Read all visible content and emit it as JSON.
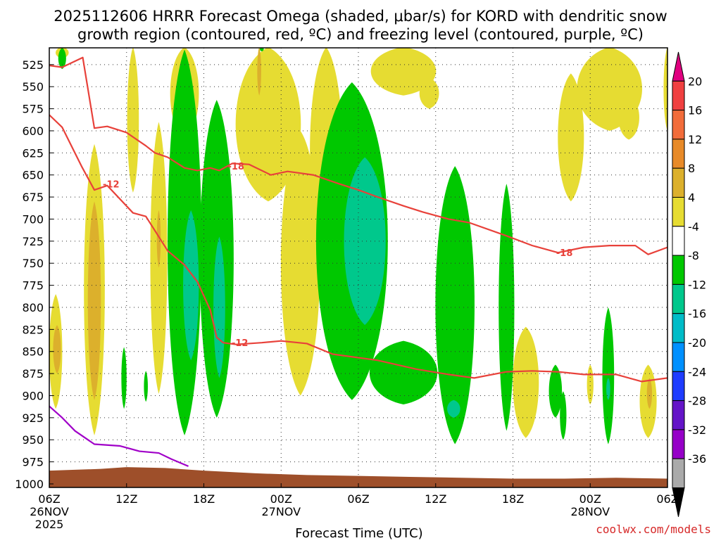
{
  "chart_data": {
    "type": "contour",
    "title_line1": "2025112606 HRRR Forecast Omega (shaded, μbar/s) for KORD with dendritic snow",
    "title_line2": "growth region (contoured, red, ºC) and freezing level (contoured, purple, ºC)",
    "xlabel": "Forecast Time (UTC)",
    "credit": "coolwx.com/models",
    "x_range_hours": [
      0,
      48
    ],
    "y_range_hPa": [
      1004,
      506
    ],
    "x_ticks": [
      {
        "hour": 0,
        "label": "06Z",
        "date": "26NOV",
        "year": "2025"
      },
      {
        "hour": 6,
        "label": "12Z",
        "date": "",
        "year": ""
      },
      {
        "hour": 12,
        "label": "18Z",
        "date": "",
        "year": ""
      },
      {
        "hour": 18,
        "label": "00Z",
        "date": "27NOV",
        "year": ""
      },
      {
        "hour": 24,
        "label": "06Z",
        "date": "",
        "year": ""
      },
      {
        "hour": 30,
        "label": "12Z",
        "date": "",
        "year": ""
      },
      {
        "hour": 36,
        "label": "18Z",
        "date": "",
        "year": ""
      },
      {
        "hour": 42,
        "label": "00Z",
        "date": "28NOV",
        "year": ""
      },
      {
        "hour": 48,
        "label": "06Z",
        "date": "",
        "year": ""
      }
    ],
    "y_ticks": [
      {
        "p": 525,
        "label": "525"
      },
      {
        "p": 550,
        "label": "550"
      },
      {
        "p": 575,
        "label": "575"
      },
      {
        "p": 600,
        "label": "600"
      },
      {
        "p": 625,
        "label": "625"
      },
      {
        "p": 650,
        "label": "650"
      },
      {
        "p": 675,
        "label": "675"
      },
      {
        "p": 700,
        "label": "700"
      },
      {
        "p": 725,
        "label": "725"
      },
      {
        "p": 750,
        "label": "750"
      },
      {
        "p": 775,
        "label": "775"
      },
      {
        "p": 800,
        "label": "800"
      },
      {
        "p": 825,
        "label": "825"
      },
      {
        "p": 850,
        "label": "850"
      },
      {
        "p": 875,
        "label": "875"
      },
      {
        "p": 900,
        "label": "900"
      },
      {
        "p": 925,
        "label": "925"
      },
      {
        "p": 950,
        "label": "950"
      },
      {
        "p": 975,
        "label": "975"
      },
      {
        "p": 1000,
        "label": "1000"
      }
    ],
    "colorbar": {
      "labels": [
        "20",
        "16",
        "12",
        "8",
        "4",
        "-4",
        "-8",
        "-12",
        "-16",
        "-20",
        "-24",
        "-28",
        "-32",
        "-36"
      ],
      "bins": [
        {
          "color": "#e0007f",
          "kind": "top-arrow"
        },
        {
          "color": "#f04040"
        },
        {
          "color": "#f26c3a"
        },
        {
          "color": "#e88a28"
        },
        {
          "color": "#dcb02c"
        },
        {
          "color": "#e6dc32"
        },
        {
          "color": "#ffffff"
        },
        {
          "color": "#00c800"
        },
        {
          "color": "#00c88c"
        },
        {
          "color": "#00bcc8"
        },
        {
          "color": "#0090ff"
        },
        {
          "color": "#1e3cff"
        },
        {
          "color": "#6414c8"
        },
        {
          "color": "#9600c8"
        },
        {
          "color": "#aaaaaa"
        },
        {
          "color": "#000000",
          "kind": "bottom-arrow"
        }
      ]
    },
    "omega_shading": [
      {
        "level": 4,
        "color": "#e6dc32",
        "blobs": [
          {
            "t": 0.6,
            "p0": 845,
            "p1": 893,
            "w": 0.3
          },
          {
            "t": 0.5,
            "p0": 785,
            "p1": 915,
            "w": 1.0
          },
          {
            "t": 1.0,
            "p0": 505,
            "p1": 518,
            "w": 1.0
          },
          {
            "t": 3.5,
            "p0": 615,
            "p1": 945,
            "w": 1.6
          },
          {
            "t": 8.5,
            "p0": 590,
            "p1": 898,
            "w": 1.3
          },
          {
            "t": 6.5,
            "p0": 505,
            "p1": 670,
            "w": 0.9
          },
          {
            "t": 10.5,
            "p0": 505,
            "p1": 610,
            "w": 2.2
          },
          {
            "t": 17.0,
            "p0": 505,
            "p1": 680,
            "w": 5.0
          },
          {
            "t": 19.5,
            "p0": 600,
            "p1": 900,
            "w": 3.0
          },
          {
            "t": 21.5,
            "p0": 505,
            "p1": 740,
            "w": 2.5
          },
          {
            "t": 27.5,
            "p0": 505,
            "p1": 560,
            "w": 5.0
          },
          {
            "t": 29.5,
            "p0": 540,
            "p1": 575,
            "w": 1.5
          },
          {
            "t": 43.5,
            "p0": 505,
            "p1": 600,
            "w": 5.0
          },
          {
            "t": 40.5,
            "p0": 535,
            "p1": 680,
            "w": 2.0
          },
          {
            "t": 45.0,
            "p0": 560,
            "p1": 610,
            "w": 1.6
          },
          {
            "t": 48.0,
            "p0": 505,
            "p1": 600,
            "w": 0.6
          },
          {
            "t": 37.0,
            "p0": 822,
            "p1": 948,
            "w": 2.0
          },
          {
            "t": 42.0,
            "p0": 865,
            "p1": 910,
            "w": 0.5
          },
          {
            "t": 46.5,
            "p0": 865,
            "p1": 948,
            "w": 1.3
          }
        ]
      },
      {
        "level": 8,
        "color": "#dcb02c",
        "blobs": [
          {
            "t": 0.6,
            "p0": 820,
            "p1": 875,
            "w": 0.6
          },
          {
            "t": 3.5,
            "p0": 680,
            "p1": 905,
            "w": 1.0
          },
          {
            "t": 8.5,
            "p0": 690,
            "p1": 755,
            "w": 0.3
          },
          {
            "t": 16.3,
            "p0": 505,
            "p1": 560,
            "w": 0.3
          },
          {
            "t": 46.6,
            "p0": 880,
            "p1": 915,
            "w": 0.4
          }
        ]
      },
      {
        "level": -4,
        "color": "#00c800",
        "blobs": [
          {
            "t": 1.0,
            "p0": 506,
            "p1": 530,
            "w": 0.6
          },
          {
            "t": 5.8,
            "p0": 845,
            "p1": 915,
            "w": 0.4
          },
          {
            "t": 7.5,
            "p0": 872,
            "p1": 907,
            "w": 0.3
          },
          {
            "t": 10.5,
            "p0": 508,
            "p1": 945,
            "w": 2.6
          },
          {
            "t": 13.0,
            "p0": 565,
            "p1": 925,
            "w": 2.6
          },
          {
            "t": 16.5,
            "p0": 505,
            "p1": 510,
            "w": 0.3
          },
          {
            "t": 23.5,
            "p0": 545,
            "p1": 905,
            "w": 5.5
          },
          {
            "t": 27.5,
            "p0": 838,
            "p1": 910,
            "w": 5.2
          },
          {
            "t": 31.5,
            "p0": 640,
            "p1": 955,
            "w": 3.0
          },
          {
            "t": 35.5,
            "p0": 660,
            "p1": 940,
            "w": 1.2
          },
          {
            "t": 39.3,
            "p0": 865,
            "p1": 925,
            "w": 1.0
          },
          {
            "t": 39.9,
            "p0": 895,
            "p1": 950,
            "w": 0.5
          },
          {
            "t": 43.4,
            "p0": 800,
            "p1": 955,
            "w": 0.9
          }
        ]
      },
      {
        "level": -8,
        "color": "#00c88c",
        "blobs": [
          {
            "t": 11.0,
            "p0": 690,
            "p1": 860,
            "w": 1.2
          },
          {
            "t": 13.2,
            "p0": 720,
            "p1": 880,
            "w": 0.9
          },
          {
            "t": 24.5,
            "p0": 630,
            "p1": 820,
            "w": 3.2
          },
          {
            "t": 31.4,
            "p0": 905,
            "p1": 925,
            "w": 1.0
          },
          {
            "t": 43.4,
            "p0": 880,
            "p1": 905,
            "w": 0.3
          }
        ]
      }
    ],
    "contours": [
      {
        "name": "dendritic-upper",
        "color": "#e8413a",
        "label": "-18",
        "label_at": {
          "t": 14.5,
          "p": 640
        },
        "label2": "-18",
        "label2_at": {
          "t": 40.0,
          "p": 738
        },
        "points": [
          [
            0,
            526
          ],
          [
            1,
            528
          ],
          [
            2.6,
            517
          ],
          [
            3.5,
            597
          ],
          [
            4.5,
            595
          ],
          [
            6,
            602
          ],
          [
            7.5,
            617
          ],
          [
            8.2,
            625
          ],
          [
            9.2,
            630
          ],
          [
            10.5,
            642
          ],
          [
            11.5,
            645
          ],
          [
            12.5,
            642
          ],
          [
            13.2,
            645
          ],
          [
            14.2,
            637
          ],
          [
            15.5,
            638
          ],
          [
            17.2,
            650
          ],
          [
            18.5,
            646
          ],
          [
            19.5,
            648
          ],
          [
            20.5,
            650
          ],
          [
            22.5,
            660
          ],
          [
            24,
            667
          ],
          [
            25.5,
            675
          ],
          [
            27.5,
            685
          ],
          [
            29,
            692
          ],
          [
            31,
            700
          ],
          [
            32.6,
            704
          ],
          [
            35.5,
            719
          ],
          [
            37.5,
            730
          ],
          [
            39.5,
            738
          ],
          [
            41.5,
            732
          ],
          [
            43.5,
            730
          ],
          [
            45.5,
            730
          ],
          [
            46.5,
            740
          ],
          [
            48,
            732
          ]
        ]
      },
      {
        "name": "dendritic-lower",
        "color": "#e8413a",
        "label": "-12",
        "label_at": {
          "t": 4.8,
          "p": 660
        },
        "label2": "-12",
        "label2_at": {
          "t": 14.8,
          "p": 840
        },
        "points": [
          [
            0,
            582
          ],
          [
            1,
            596
          ],
          [
            2.5,
            640
          ],
          [
            3.5,
            667
          ],
          [
            4.5,
            662
          ],
          [
            6.5,
            693
          ],
          [
            7.5,
            697
          ],
          [
            9.2,
            736
          ],
          [
            10.5,
            752
          ],
          [
            11.5,
            771
          ],
          [
            12.5,
            803
          ],
          [
            13,
            834
          ],
          [
            13.5,
            840
          ],
          [
            14.5,
            842
          ],
          [
            16.5,
            840
          ],
          [
            18,
            838
          ],
          [
            20,
            841
          ],
          [
            22,
            853
          ],
          [
            25.5,
            860
          ],
          [
            28.5,
            870
          ],
          [
            31,
            876
          ],
          [
            33,
            880
          ],
          [
            35.5,
            873
          ],
          [
            37.5,
            872
          ],
          [
            39.5,
            873
          ],
          [
            41.5,
            876
          ],
          [
            44,
            876
          ],
          [
            46,
            884
          ],
          [
            48,
            880
          ]
        ]
      },
      {
        "name": "freezing-level",
        "color": "#a000c8",
        "label": "",
        "label_at": {
          "t": 0,
          "p": 0
        },
        "label2": "",
        "label2_at": {
          "t": 0,
          "p": 0
        },
        "points": [
          [
            0,
            912
          ],
          [
            1,
            925
          ],
          [
            2,
            940
          ],
          [
            3.5,
            955
          ],
          [
            5.5,
            957
          ],
          [
            7,
            963
          ],
          [
            8.5,
            965
          ],
          [
            9.5,
            972
          ],
          [
            10.8,
            980
          ]
        ]
      }
    ],
    "terrain": {
      "color": "#9e4f2a",
      "points": [
        [
          0,
          985
        ],
        [
          4,
          983
        ],
        [
          6,
          981
        ],
        [
          9,
          982
        ],
        [
          12,
          985
        ],
        [
          16,
          988
        ],
        [
          20,
          990
        ],
        [
          24,
          991
        ],
        [
          28,
          992
        ],
        [
          32,
          993
        ],
        [
          36,
          994
        ],
        [
          40,
          994
        ],
        [
          44,
          993
        ],
        [
          48,
          994
        ]
      ]
    }
  }
}
